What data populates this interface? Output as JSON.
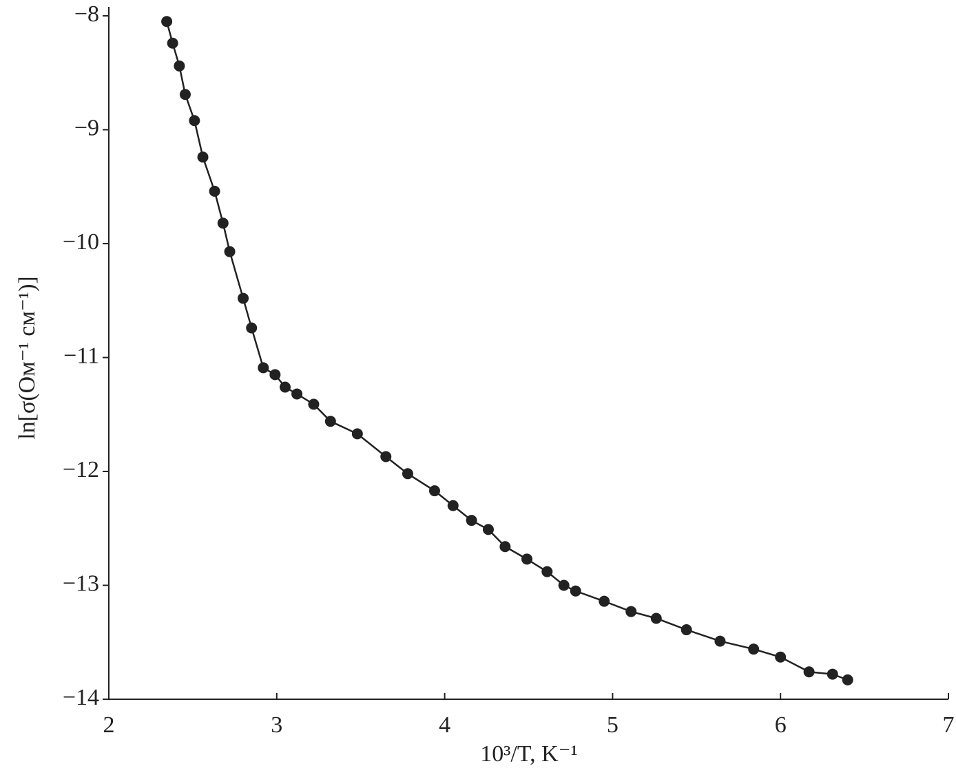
{
  "chart_data": {
    "type": "line",
    "x_label": "10³/T, K⁻¹",
    "y_label": "ln[σ(Ом⁻¹ см⁻¹)]",
    "x": [
      2.345,
      2.38,
      2.42,
      2.455,
      2.51,
      2.56,
      2.63,
      2.68,
      2.72,
      2.8,
      2.85,
      2.92,
      2.99,
      3.05,
      3.12,
      3.22,
      3.32,
      3.48,
      3.65,
      3.78,
      3.94,
      4.05,
      4.16,
      4.26,
      4.36,
      4.49,
      4.61,
      4.71,
      4.78,
      4.95,
      5.11,
      5.26,
      5.44,
      5.64,
      5.84,
      6.0,
      6.17,
      6.31,
      6.4
    ],
    "series": [
      {
        "color": "#222222",
        "values": [
          -8.05,
          -8.24,
          -8.44,
          -8.69,
          -8.92,
          -9.24,
          -9.54,
          -9.82,
          -10.07,
          -10.48,
          -10.74,
          -11.09,
          -11.15,
          -11.26,
          -11.32,
          -11.41,
          -11.56,
          -11.67,
          -11.87,
          -12.02,
          -12.17,
          -12.3,
          -12.43,
          -12.51,
          -12.66,
          -12.77,
          -12.88,
          -13.0,
          -13.05,
          -13.14,
          -13.23,
          -13.29,
          -13.39,
          -13.49,
          -13.56,
          -13.63,
          -13.76,
          -13.78,
          -13.83
        ]
      }
    ],
    "xlim": [
      2,
      7
    ],
    "xticks": [
      2,
      3,
      4,
      5,
      6,
      7
    ],
    "ylim": [
      -14,
      -8
    ],
    "yticks": [
      {
        "value": -14,
        "label": "−14"
      },
      {
        "value": -13,
        "label": "−13"
      },
      {
        "value": -12,
        "label": "−12"
      },
      {
        "value": -11,
        "label": "−11"
      },
      {
        "value": -10,
        "label": "−10"
      },
      {
        "value": -9,
        "label": "−9"
      },
      {
        "value": -8,
        "label": "−8"
      }
    ],
    "grid": false
  }
}
